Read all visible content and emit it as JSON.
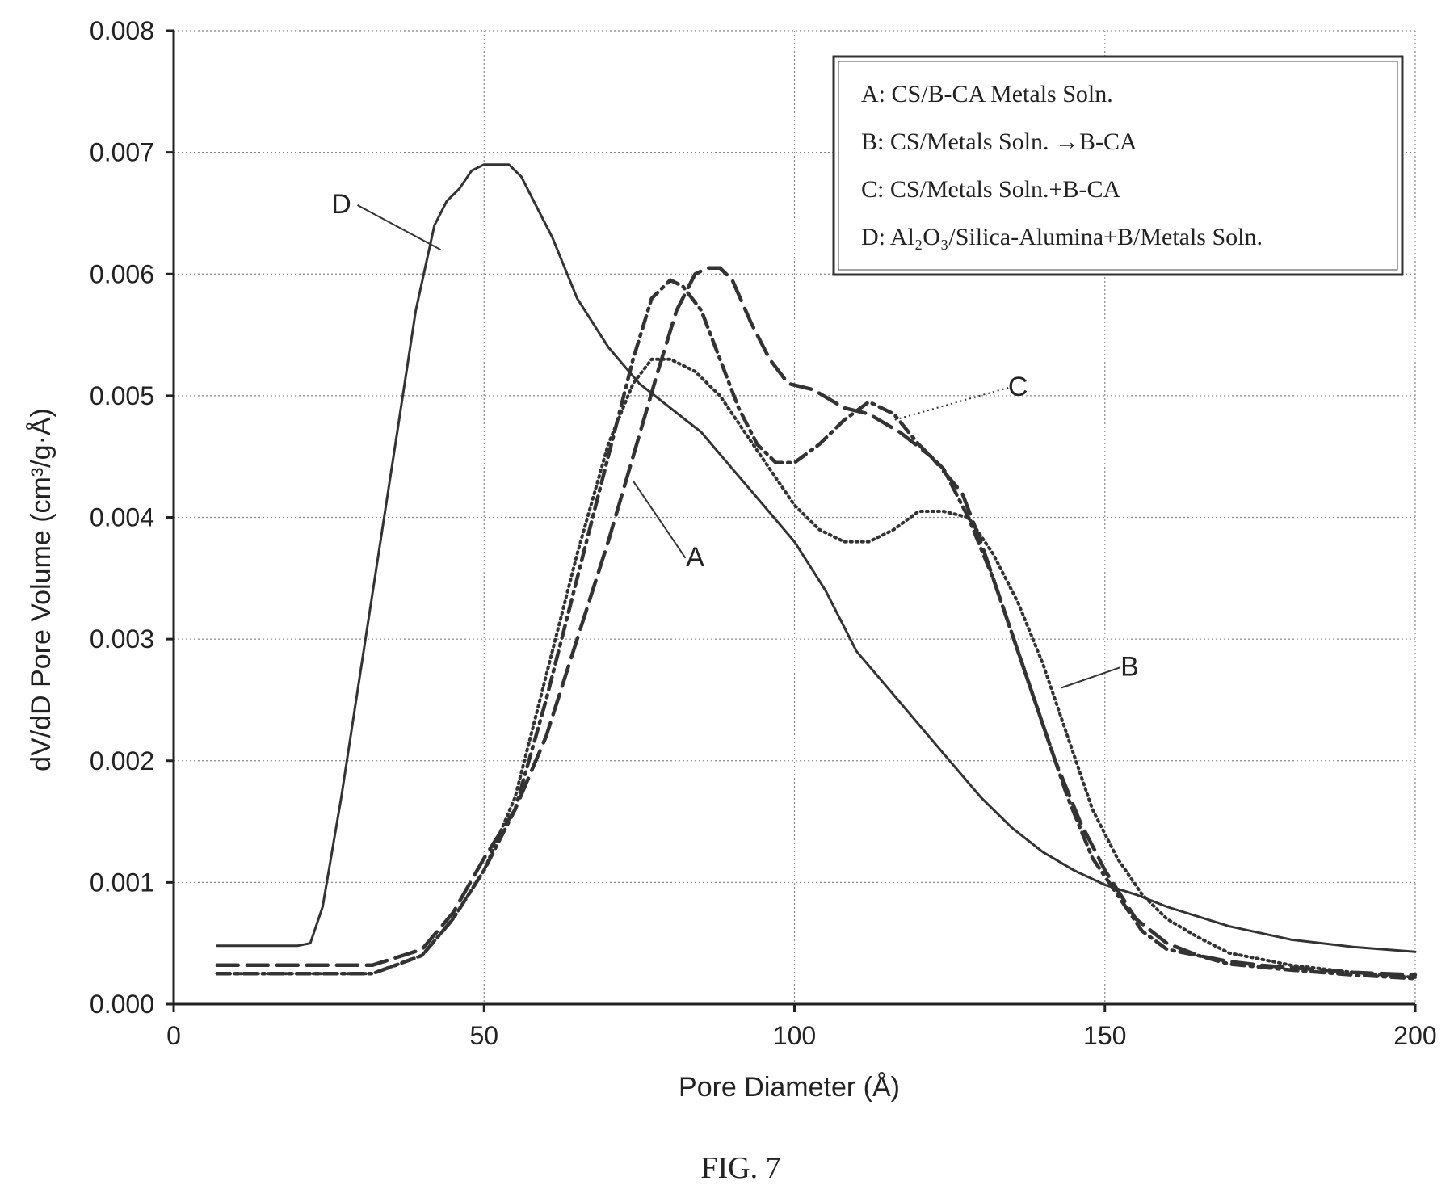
{
  "figure_caption": "FIG. 7",
  "chart_data": {
    "type": "line",
    "xlabel": "Pore Diameter (Å)",
    "ylabel": "dV/dD Pore Volume (cm³/g·Å)",
    "xlim": [
      0,
      200
    ],
    "ylim": [
      0,
      0.008
    ],
    "x_ticks": [
      0,
      50,
      100,
      150,
      200
    ],
    "x_tick_labels": [
      "0",
      "50",
      "100",
      "150",
      "200"
    ],
    "y_ticks": [
      0,
      0.001,
      0.002,
      0.003,
      0.004,
      0.005,
      0.006,
      0.007,
      0.008
    ],
    "y_tick_labels": [
      "0.000",
      "0.001",
      "0.002",
      "0.003",
      "0.004",
      "0.005",
      "0.006",
      "0.007",
      "0.008"
    ],
    "grid": true,
    "legend_placement": "top-right",
    "legend": [
      "A: CS/B-CA Metals Soln.",
      "B: CS/Metals Soln. →B-CA",
      "C: CS/Metals Soln.+B-CA",
      "D: Al₂O₃/Silica-Alumina+B/Metals Soln."
    ],
    "series": [
      {
        "name": "A",
        "style": "dashed",
        "x": [
          7,
          22,
          32,
          40,
          45,
          50,
          55,
          60,
          65,
          70,
          74,
          78,
          81,
          84,
          86,
          88,
          90,
          93,
          96,
          99,
          103,
          108,
          112,
          117,
          122,
          127,
          130,
          134,
          138,
          142,
          146,
          150,
          155,
          160,
          165,
          170,
          175,
          180,
          190,
          200
        ],
        "y": [
          0.00032,
          0.00032,
          0.00032,
          0.00045,
          0.00075,
          0.0012,
          0.0016,
          0.0022,
          0.003,
          0.0038,
          0.0045,
          0.0052,
          0.0057,
          0.006,
          0.00605,
          0.00605,
          0.00595,
          0.0056,
          0.0053,
          0.0051,
          0.00505,
          0.0049,
          0.00485,
          0.0047,
          0.0045,
          0.0042,
          0.0038,
          0.0032,
          0.0026,
          0.002,
          0.0015,
          0.0011,
          0.0007,
          0.0005,
          0.0004,
          0.00035,
          0.00032,
          0.0003,
          0.00026,
          0.00024
        ]
      },
      {
        "name": "B",
        "style": "dotted",
        "x": [
          7,
          22,
          32,
          40,
          45,
          50,
          55,
          60,
          65,
          70,
          74,
          77,
          80,
          84,
          88,
          92,
          96,
          100,
          104,
          108,
          112,
          116,
          120,
          124,
          128,
          132,
          136,
          140,
          144,
          148,
          152,
          156,
          160,
          165,
          170,
          180,
          190,
          200
        ],
        "y": [
          0.00025,
          0.00025,
          0.00025,
          0.0004,
          0.0007,
          0.0011,
          0.0017,
          0.0027,
          0.0037,
          0.0046,
          0.0051,
          0.0053,
          0.0053,
          0.0052,
          0.005,
          0.0047,
          0.0044,
          0.0041,
          0.0039,
          0.0038,
          0.0038,
          0.0039,
          0.00405,
          0.00405,
          0.004,
          0.0037,
          0.0033,
          0.0028,
          0.0022,
          0.0016,
          0.0012,
          0.0009,
          0.0007,
          0.00055,
          0.00042,
          0.00032,
          0.00026,
          0.00022
        ]
      },
      {
        "name": "C",
        "style": "dash-dot",
        "x": [
          7,
          22,
          32,
          40,
          45,
          50,
          55,
          60,
          65,
          70,
          74,
          77,
          80,
          82,
          85,
          88,
          91,
          94,
          97,
          100,
          104,
          108,
          112,
          116,
          120,
          124,
          128,
          132,
          136,
          140,
          144,
          148,
          152,
          156,
          160,
          165,
          170,
          180,
          190,
          200
        ],
        "y": [
          0.00025,
          0.00025,
          0.00025,
          0.0004,
          0.0007,
          0.0011,
          0.0016,
          0.0025,
          0.0035,
          0.0045,
          0.0053,
          0.0058,
          0.00595,
          0.0059,
          0.0057,
          0.0053,
          0.0049,
          0.0046,
          0.00445,
          0.00445,
          0.0046,
          0.0048,
          0.00495,
          0.00485,
          0.0046,
          0.0044,
          0.004,
          0.0035,
          0.0029,
          0.0023,
          0.0017,
          0.0012,
          0.0009,
          0.0006,
          0.00045,
          0.0004,
          0.00033,
          0.00028,
          0.00024,
          0.00021
        ]
      },
      {
        "name": "D",
        "style": "solid",
        "x": [
          7,
          20,
          22,
          24,
          27,
          30,
          33,
          36,
          39,
          42,
          44,
          46,
          48,
          50,
          52,
          54,
          56,
          58,
          61,
          65,
          70,
          75,
          80,
          85,
          90,
          95,
          100,
          105,
          110,
          115,
          120,
          125,
          130,
          135,
          140,
          145,
          150,
          155,
          160,
          170,
          180,
          190,
          200
        ],
        "y": [
          0.00048,
          0.00048,
          0.0005,
          0.0008,
          0.0017,
          0.0027,
          0.0037,
          0.0047,
          0.0057,
          0.0064,
          0.0066,
          0.0067,
          0.00685,
          0.0069,
          0.0069,
          0.0069,
          0.0068,
          0.0066,
          0.0063,
          0.0058,
          0.0054,
          0.0051,
          0.0049,
          0.0047,
          0.0044,
          0.0041,
          0.0038,
          0.0034,
          0.0029,
          0.0026,
          0.0023,
          0.002,
          0.0017,
          0.00145,
          0.00125,
          0.0011,
          0.00098,
          0.0009,
          0.0008,
          0.00064,
          0.00053,
          0.00047,
          0.00043
        ]
      }
    ],
    "annotations": [
      {
        "label": "A",
        "x": 84,
        "y": 0.0036,
        "target_x": 74,
        "target_y": 0.0043
      },
      {
        "label": "B",
        "x": 154,
        "y": 0.0027,
        "target_x": 143,
        "target_y": 0.0026
      },
      {
        "label": "C",
        "x": 136,
        "y": 0.005,
        "target_x": 116,
        "target_y": 0.0048
      },
      {
        "label": "D",
        "x": 27,
        "y": 0.0065,
        "target_x": 43,
        "target_y": 0.0062
      }
    ]
  }
}
